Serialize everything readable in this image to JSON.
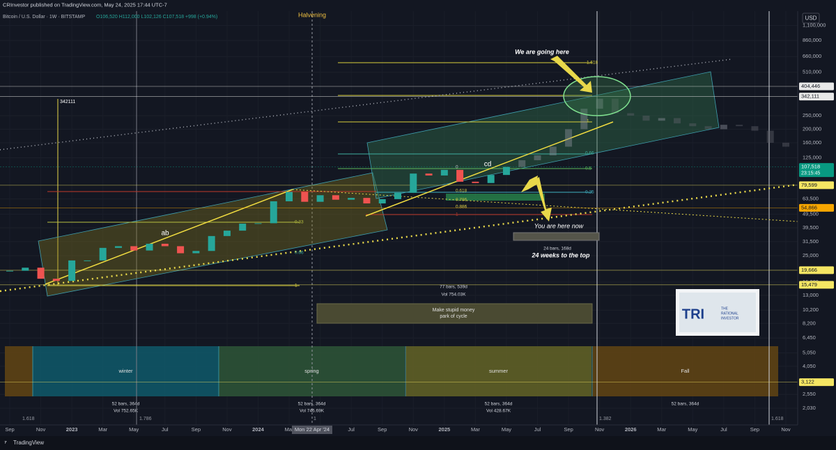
{
  "header": {
    "publisher": "CRInvestor published on TradingView.com, May 24, 2025 17:44 UTC-7",
    "symbol": "Bitcoin / U.S. Dollar · 1W · BITSTAMP",
    "ohlc": "O106,520 H112,000 L102,126 C107,518 +998 (+0.94%)"
  },
  "chart_data": {
    "type": "candlestick",
    "log_scale": true,
    "grid": true,
    "currency": "USD",
    "ylim": [
      1545,
      1393000
    ],
    "yticks": [
      {
        "value": 1100000,
        "label": "1,100,000"
      },
      {
        "value": 860000,
        "label": "860,000"
      },
      {
        "value": 660000,
        "label": "660,000"
      },
      {
        "value": 510000,
        "label": "510,000"
      },
      {
        "value": 250000,
        "label": "250,000"
      },
      {
        "value": 200000,
        "label": "200,000"
      },
      {
        "value": 160000,
        "label": "160,000"
      },
      {
        "value": 125000,
        "label": "125,000"
      },
      {
        "value": 63500,
        "label": "63,500"
      },
      {
        "value": 49500,
        "label": "49,500"
      },
      {
        "value": 39500,
        "label": "39,500"
      },
      {
        "value": 31500,
        "label": "31,500"
      },
      {
        "value": 25000,
        "label": "25,000"
      },
      {
        "value": 16200,
        "label": "16,200"
      },
      {
        "value": 13000,
        "label": "13,000"
      },
      {
        "value": 10200,
        "label": "10,200"
      },
      {
        "value": 8200,
        "label": "8,200"
      },
      {
        "value": 6450,
        "label": "6,450"
      },
      {
        "value": 5050,
        "label": "5,050"
      },
      {
        "value": 4050,
        "label": "4,050"
      },
      {
        "value": 2550,
        "label": "2,550"
      },
      {
        "value": 2030,
        "label": "2,030"
      }
    ],
    "x_labels": [
      "Sep",
      "Nov",
      "2023",
      "Mar",
      "May",
      "Jul",
      "Sep",
      "Nov",
      "2024",
      "Mar",
      "May",
      "Jul",
      "Sep",
      "Nov",
      "2025",
      "Mar",
      "May",
      "Jul",
      "Sep",
      "Nov",
      "2026",
      "Mar",
      "May",
      "Jul",
      "Sep",
      "Nov"
    ],
    "crosshair_date": "Mon 22 Apr '24",
    "series": [
      {
        "color": "#26a69a",
        "down_color": "#ef5350",
        "values": [
          19500,
          20500,
          17100,
          16500,
          23100,
          23100,
          28400,
          29200,
          27200,
          30400,
          29200,
          26000,
          27000,
          34500,
          37700,
          42300,
          42600,
          61100,
          71300,
          60600,
          67500,
          62700,
          64600,
          59000,
          63300,
          70200,
          96400,
          93400,
          102400,
          84300,
          82500,
          94200,
          107518
        ]
      },
      {
        "color": "#8a8f98",
        "down_color": "#5d6068",
        "values": [
          120000,
          130000,
          150000,
          200000,
          280000,
          330000,
          260000,
          250000,
          230000,
          240000,
          220000,
          210000,
          200000,
          215000,
          210000,
          195000,
          160000,
          150000
        ]
      }
    ],
    "price_tags": [
      {
        "value": 404446,
        "label": "404,446",
        "color": "#e8e8e8",
        "text_color": "#131722"
      },
      {
        "value": 342111,
        "label": "342,111",
        "color": "#e8e8e8",
        "text_color": "#131722"
      },
      {
        "value": 107518,
        "label": "107,518",
        "color": "#089981",
        "text_color": "#ffffff"
      },
      {
        "value": 79599,
        "label": "79,599",
        "color": "#f5e663",
        "text_color": "#131722"
      },
      {
        "value": 54866,
        "label": "54,866",
        "color": "#f7a600",
        "text_color": "#131722"
      },
      {
        "value": 19666,
        "label": "19,666",
        "color": "#f5e663",
        "text_color": "#131722"
      },
      {
        "value": 15479,
        "label": "15,479",
        "color": "#f5e663",
        "text_color": "#131722"
      },
      {
        "value": 3122,
        "label": "3,122",
        "color": "#f5e663",
        "text_color": "#131722"
      }
    ],
    "countdown": "23:15:45"
  },
  "annotations": [
    "Halvening",
    "We are going here",
    "You are here now",
    "24 bars, 168d",
    "24 weeks to the top",
    "ab",
    "cd",
    342111,
    "77 bars, 539d",
    "Vol 754.03K",
    "Make stupid money",
    "park of cycle"
  ],
  "fib_labels": [
    "1.618",
    "1",
    "0.66",
    "0.5",
    "0.25",
    "0",
    "0.618",
    "0.786",
    "0.886",
    "1",
    "0.33",
    "0.66",
    "1"
  ],
  "cycle_ratios": [
    "1.618",
    "1.786",
    "1",
    "1.382",
    "1.618"
  ],
  "seasons": [
    {
      "name": "winter",
      "stats": "52 bars, 364d",
      "volume": "Vol 752.65K",
      "color": "#0f5566"
    },
    {
      "name": "spring",
      "stats": "52 bars, 364d",
      "volume": "Vol 746.69K",
      "color": "#2c5236"
    },
    {
      "name": "summer",
      "stats": "52 bars, 364d",
      "volume": "Vol 428.67K",
      "color": "#5f5f26"
    },
    {
      "name": "Fall",
      "stats": "52 bars, 364d",
      "color": "#5e4214"
    }
  ],
  "logo": {
    "mark": "TRI",
    "line1": "THE",
    "line2": "RATIONAL",
    "line3": "INVESTOR"
  },
  "footer": "TradingView"
}
